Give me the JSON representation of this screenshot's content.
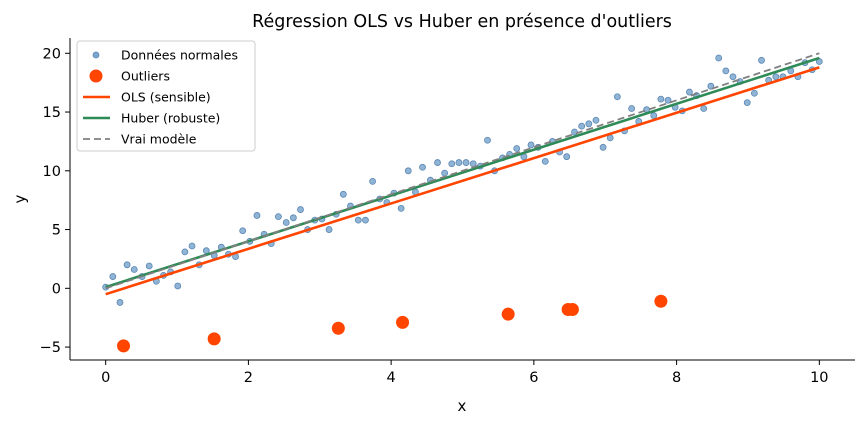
{
  "chart_data": {
    "type": "scatter",
    "title": "Régression OLS vs Huber en présence d'outliers",
    "xlabel": "x",
    "ylabel": "y",
    "xlim": [
      -0.5,
      10.5
    ],
    "ylim": [
      -6.1,
      21.3
    ],
    "xticks": [
      "0",
      "2",
      "4",
      "6",
      "8",
      "10"
    ],
    "yticks": [
      "−5",
      "0",
      "5",
      "10",
      "15",
      "20"
    ],
    "xtick_values": [
      0,
      2,
      4,
      6,
      8,
      10
    ],
    "ytick_values": [
      -5,
      0,
      5,
      10,
      15,
      20
    ],
    "grid": false,
    "legend_position": "top-left",
    "colors": {
      "normal": "#7ba7cf",
      "normal_edge": "#5b87b3",
      "outliers": "#ff4500",
      "ols": "#ff4500",
      "huber": "#2e8b57",
      "true_model": "#808080"
    },
    "series": [
      {
        "name": "Données normales",
        "kind": "scatter",
        "points": [
          [
            0.0,
            0.1
          ],
          [
            0.1,
            1.0
          ],
          [
            0.2,
            -1.2
          ],
          [
            0.3,
            2.0
          ],
          [
            0.4,
            1.6
          ],
          [
            0.51,
            1.0
          ],
          [
            0.61,
            1.9
          ],
          [
            0.71,
            0.6
          ],
          [
            0.81,
            1.1
          ],
          [
            0.91,
            1.4
          ],
          [
            1.01,
            0.2
          ],
          [
            1.11,
            3.1
          ],
          [
            1.21,
            3.6
          ],
          [
            1.31,
            2.0
          ],
          [
            1.41,
            3.2
          ],
          [
            1.52,
            2.8
          ],
          [
            1.62,
            3.5
          ],
          [
            1.72,
            2.9
          ],
          [
            1.82,
            2.7
          ],
          [
            1.92,
            4.9
          ],
          [
            2.02,
            4.0
          ],
          [
            2.12,
            6.2
          ],
          [
            2.22,
            4.6
          ],
          [
            2.32,
            3.8
          ],
          [
            2.42,
            6.1
          ],
          [
            2.53,
            5.6
          ],
          [
            2.63,
            6.0
          ],
          [
            2.73,
            6.7
          ],
          [
            2.83,
            5.0
          ],
          [
            2.93,
            5.8
          ],
          [
            3.03,
            5.9
          ],
          [
            3.13,
            5.0
          ],
          [
            3.23,
            6.3
          ],
          [
            3.33,
            8.0
          ],
          [
            3.43,
            7.0
          ],
          [
            3.54,
            5.8
          ],
          [
            3.64,
            5.8
          ],
          [
            3.74,
            9.1
          ],
          [
            3.84,
            7.6
          ],
          [
            3.94,
            7.3
          ],
          [
            4.04,
            8.1
          ],
          [
            4.14,
            6.8
          ],
          [
            4.24,
            10.0
          ],
          [
            4.34,
            8.2
          ],
          [
            4.44,
            10.3
          ],
          [
            4.55,
            9.2
          ],
          [
            4.65,
            10.7
          ],
          [
            4.75,
            9.8
          ],
          [
            4.85,
            10.6
          ],
          [
            4.95,
            10.7
          ],
          [
            5.05,
            10.7
          ],
          [
            5.15,
            10.6
          ],
          [
            5.25,
            10.4
          ],
          [
            5.35,
            12.6
          ],
          [
            5.45,
            10.0
          ],
          [
            5.56,
            11.1
          ],
          [
            5.66,
            11.4
          ],
          [
            5.76,
            11.9
          ],
          [
            5.86,
            11.2
          ],
          [
            5.96,
            12.2
          ],
          [
            6.06,
            12.0
          ],
          [
            6.16,
            10.8
          ],
          [
            6.26,
            12.5
          ],
          [
            6.36,
            11.6
          ],
          [
            6.46,
            11.2
          ],
          [
            6.57,
            13.3
          ],
          [
            6.67,
            13.8
          ],
          [
            6.77,
            14.0
          ],
          [
            6.87,
            14.3
          ],
          [
            6.97,
            12.0
          ],
          [
            7.07,
            12.8
          ],
          [
            7.17,
            16.3
          ],
          [
            7.27,
            13.4
          ],
          [
            7.37,
            15.3
          ],
          [
            7.47,
            14.2
          ],
          [
            7.58,
            15.2
          ],
          [
            7.68,
            14.7
          ],
          [
            7.78,
            16.1
          ],
          [
            7.88,
            16.0
          ],
          [
            7.98,
            15.4
          ],
          [
            8.08,
            15.1
          ],
          [
            8.18,
            16.7
          ],
          [
            8.28,
            16.4
          ],
          [
            8.38,
            15.3
          ],
          [
            8.48,
            17.2
          ],
          [
            8.59,
            19.6
          ],
          [
            8.69,
            18.5
          ],
          [
            8.79,
            18.0
          ],
          [
            8.89,
            17.6
          ],
          [
            8.99,
            15.8
          ],
          [
            9.09,
            16.6
          ],
          [
            9.19,
            19.4
          ],
          [
            9.29,
            17.7
          ],
          [
            9.39,
            18.0
          ],
          [
            9.49,
            18.0
          ],
          [
            9.6,
            18.5
          ],
          [
            9.7,
            18.0
          ],
          [
            9.8,
            19.2
          ],
          [
            9.9,
            18.6
          ],
          [
            10.0,
            19.3
          ]
        ]
      },
      {
        "name": "Outliers",
        "kind": "scatter",
        "points": [
          [
            0.25,
            -4.9
          ],
          [
            1.52,
            -4.3
          ],
          [
            3.26,
            -3.4
          ],
          [
            4.16,
            -2.9
          ],
          [
            5.64,
            -2.2
          ],
          [
            6.48,
            -1.8
          ],
          [
            6.54,
            -1.8
          ],
          [
            7.78,
            -1.1
          ]
        ]
      },
      {
        "name": "OLS (sensible)",
        "kind": "line",
        "x": [
          0,
          10
        ],
        "y": [
          -0.5,
          18.8
        ]
      },
      {
        "name": "Huber (robuste)",
        "kind": "line",
        "x": [
          0,
          10
        ],
        "y": [
          0.1,
          19.6
        ]
      },
      {
        "name": "Vrai modèle",
        "kind": "line",
        "dash": "dashed",
        "x": [
          0,
          10
        ],
        "y": [
          0.0,
          20.0
        ]
      }
    ]
  }
}
